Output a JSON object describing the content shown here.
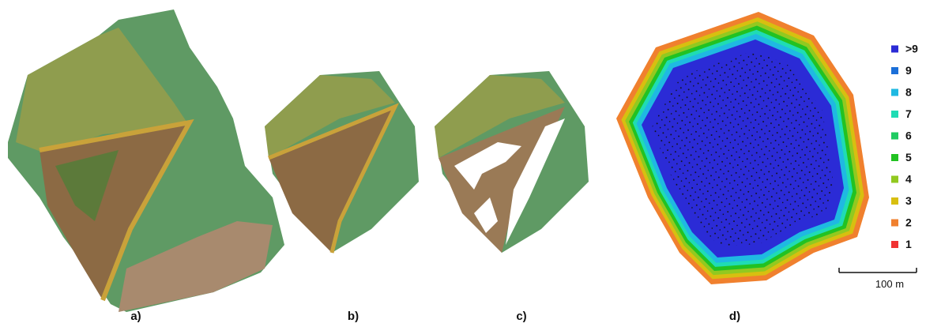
{
  "panels": [
    {
      "label": "a)"
    },
    {
      "label": "b)"
    },
    {
      "label": "c)"
    },
    {
      "label": "d)"
    }
  ],
  "legend": {
    "items": [
      {
        "label": ">9",
        "color": "#2b2bd6"
      },
      {
        "label": "9",
        "color": "#1b6fd8"
      },
      {
        "label": "8",
        "color": "#1fb9e2"
      },
      {
        "label": "7",
        "color": "#1fdcb4"
      },
      {
        "label": "6",
        "color": "#1fcb62"
      },
      {
        "label": "5",
        "color": "#22c222"
      },
      {
        "label": "4",
        "color": "#92c920"
      },
      {
        "label": "3",
        "color": "#d8bf10"
      },
      {
        "label": "2",
        "color": "#f0802e"
      },
      {
        "label": "1",
        "color": "#f03232"
      }
    ]
  },
  "scale_bar": {
    "label": "100 m"
  }
}
